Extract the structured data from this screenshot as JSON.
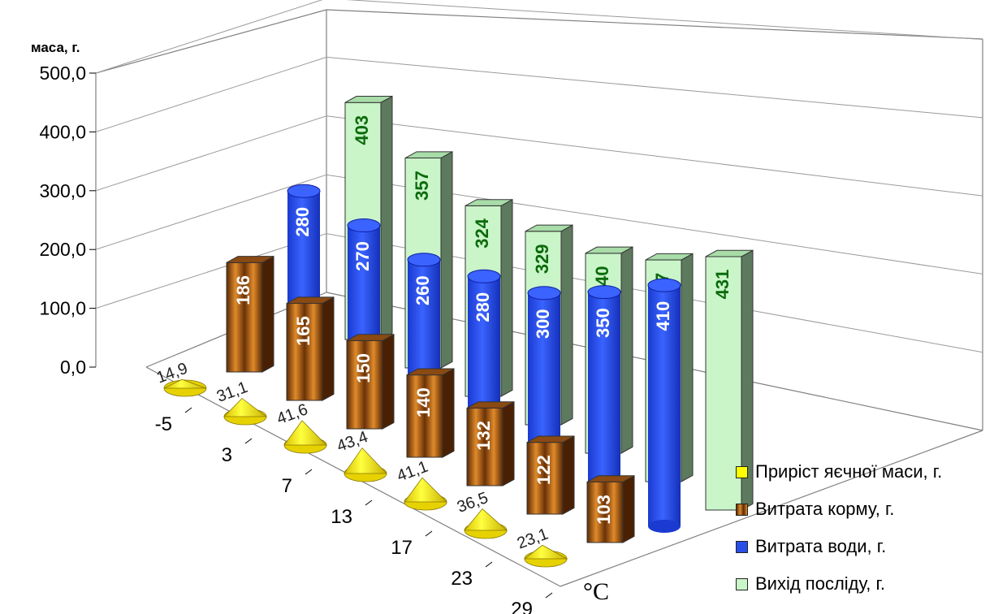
{
  "chart_data": {
    "type": "bar",
    "subtype": "3d-clustered-columns-cylinders-cones",
    "ylabel": "маса, г.",
    "xlabel": "°C",
    "categories": [
      "-5",
      "3",
      "7",
      "13",
      "17",
      "23",
      "29"
    ],
    "y_ticks": [
      "0,0",
      "100,0",
      "200,0",
      "300,0",
      "400,0",
      "500,0"
    ],
    "ylim": [
      0,
      500
    ],
    "gridlines": true,
    "legend_position": "bottom-right",
    "series": [
      {
        "name": "Приріст яєчної маси, г.",
        "shape": "cone",
        "color": "#ffff00",
        "values": [
          14.9,
          31.1,
          41.6,
          43.4,
          41.1,
          36.5,
          23.1
        ],
        "labels": [
          "14,9",
          "31,1",
          "41,6",
          "43,4",
          "41,1",
          "36,5",
          "23,1"
        ]
      },
      {
        "name": "Витрата корму, г.",
        "shape": "box",
        "color": "#c87219",
        "values": [
          186,
          165,
          150,
          140,
          132,
          122,
          103
        ],
        "labels": [
          "186",
          "165",
          "150",
          "140",
          "132",
          "122",
          "103"
        ]
      },
      {
        "name": "Витрата води, г.",
        "shape": "cylinder",
        "color": "#2a4fe8",
        "values": [
          280,
          270,
          260,
          280,
          300,
          350,
          410
        ],
        "labels": [
          "280",
          "270",
          "260",
          "280",
          "300",
          "350",
          "410"
        ]
      },
      {
        "name": "Вихід посліду, г.",
        "shape": "box",
        "color": "#c9f5c9",
        "values": [
          403,
          357,
          324,
          329,
          340,
          377,
          431
        ],
        "labels": [
          "403",
          "357",
          "324",
          "329",
          "340",
          "377",
          "431"
        ]
      }
    ]
  }
}
